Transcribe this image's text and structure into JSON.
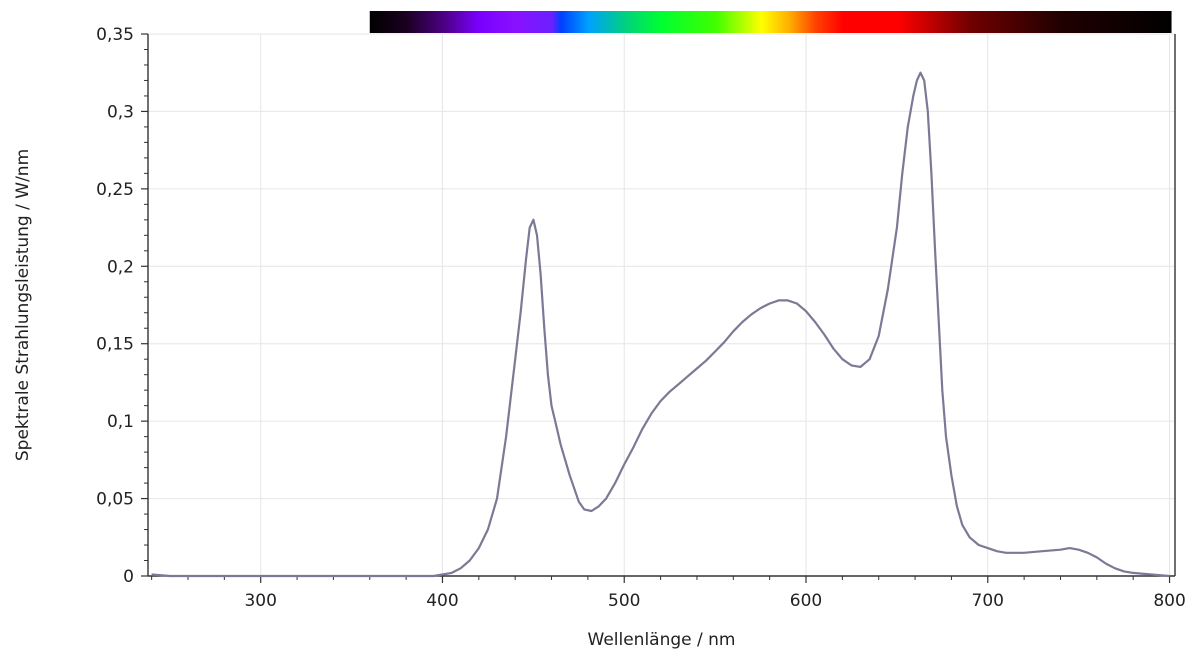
{
  "chart_data": {
    "type": "line",
    "xlabel": "Wellenlänge / nm",
    "ylabel": "Spektrale Strahlungsleistung / W/nm",
    "xlim": [
      238,
      803
    ],
    "ylim": [
      0,
      0.35
    ],
    "x_ticks": [
      300,
      400,
      500,
      600,
      700,
      800
    ],
    "y_ticks": [
      0,
      0.05,
      0.1,
      0.15,
      0.2,
      0.25,
      0.3,
      0.35
    ],
    "x_tick_labels": [
      "300",
      "400",
      "500",
      "600",
      "700",
      "800"
    ],
    "y_tick_labels": [
      "0",
      "0,05",
      "0,1",
      "0,15",
      "0,2",
      "0,25",
      "0,3",
      "0,35"
    ],
    "grid": true,
    "legend": "none",
    "line_color": "#7a7a96",
    "spectrum_bar": {
      "range_nm": [
        360,
        800
      ],
      "stops": [
        {
          "nm": 360,
          "color": "#000000"
        },
        {
          "nm": 380,
          "color": "#1a0020"
        },
        {
          "nm": 400,
          "color": "#4b0080"
        },
        {
          "nm": 420,
          "color": "#7a00ff"
        },
        {
          "nm": 440,
          "color": "#8a10ff"
        },
        {
          "nm": 460,
          "color": "#6a20ff"
        },
        {
          "nm": 465,
          "color": "#0040ff"
        },
        {
          "nm": 480,
          "color": "#00a0ff"
        },
        {
          "nm": 500,
          "color": "#00d080"
        },
        {
          "nm": 520,
          "color": "#00ff30"
        },
        {
          "nm": 550,
          "color": "#40ff00"
        },
        {
          "nm": 575,
          "color": "#ffff00"
        },
        {
          "nm": 590,
          "color": "#ffb000"
        },
        {
          "nm": 605,
          "color": "#ff4000"
        },
        {
          "nm": 620,
          "color": "#ff0000"
        },
        {
          "nm": 650,
          "color": "#ff0000"
        },
        {
          "nm": 690,
          "color": "#700000"
        },
        {
          "nm": 740,
          "color": "#200000"
        },
        {
          "nm": 800,
          "color": "#000000"
        }
      ]
    },
    "series": [
      {
        "x": [
          240,
          250,
          300,
          350,
          395,
          400,
          405,
          410,
          415,
          420,
          425,
          430,
          435,
          440,
          443,
          446,
          448,
          450,
          452,
          454,
          456,
          458,
          460,
          462,
          465,
          470,
          475,
          478,
          482,
          486,
          490,
          495,
          500,
          505,
          510,
          515,
          520,
          525,
          530,
          535,
          540,
          545,
          550,
          555,
          560,
          565,
          570,
          575,
          580,
          585,
          590,
          595,
          600,
          605,
          610,
          615,
          620,
          625,
          630,
          635,
          640,
          645,
          650,
          653,
          656,
          659,
          661,
          663,
          665,
          667,
          669,
          671,
          673,
          675,
          677,
          680,
          683,
          686,
          690,
          695,
          700,
          705,
          710,
          720,
          730,
          740,
          745,
          750,
          755,
          760,
          765,
          770,
          775,
          780,
          790,
          800
        ],
        "y": [
          0.001,
          0.0,
          0.0,
          0.0,
          0.0,
          0.001,
          0.002,
          0.005,
          0.01,
          0.018,
          0.03,
          0.05,
          0.09,
          0.14,
          0.17,
          0.205,
          0.225,
          0.23,
          0.22,
          0.195,
          0.16,
          0.13,
          0.11,
          0.1,
          0.085,
          0.065,
          0.048,
          0.043,
          0.042,
          0.045,
          0.05,
          0.06,
          0.072,
          0.083,
          0.095,
          0.105,
          0.113,
          0.119,
          0.124,
          0.129,
          0.134,
          0.139,
          0.145,
          0.151,
          0.158,
          0.164,
          0.169,
          0.173,
          0.176,
          0.178,
          0.178,
          0.176,
          0.171,
          0.164,
          0.156,
          0.147,
          0.14,
          0.136,
          0.135,
          0.14,
          0.155,
          0.185,
          0.225,
          0.26,
          0.29,
          0.31,
          0.32,
          0.325,
          0.32,
          0.3,
          0.26,
          0.21,
          0.165,
          0.12,
          0.09,
          0.065,
          0.045,
          0.033,
          0.025,
          0.02,
          0.018,
          0.016,
          0.015,
          0.015,
          0.016,
          0.017,
          0.018,
          0.017,
          0.015,
          0.012,
          0.008,
          0.005,
          0.003,
          0.002,
          0.001,
          0.0
        ]
      }
    ]
  }
}
